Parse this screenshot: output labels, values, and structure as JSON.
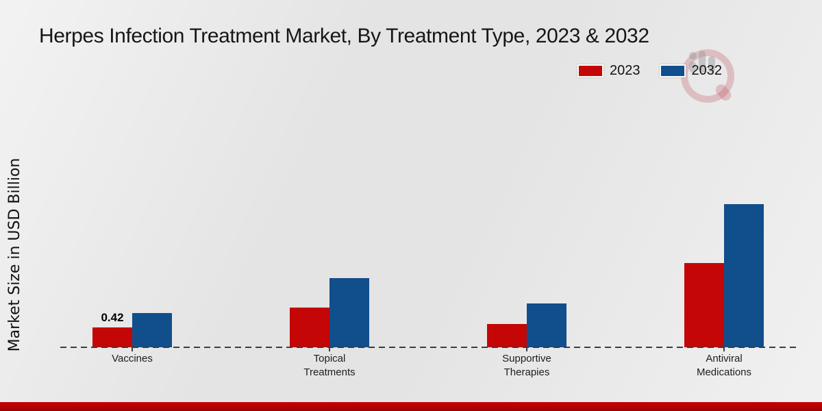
{
  "title": "Herpes Infection Treatment Market, By Treatment Type, 2023 & 2032",
  "y_axis_label": "Market Size in USD Billion",
  "legend": {
    "items": [
      {
        "label": "2023",
        "color": "#c40606"
      },
      {
        "label": "2032",
        "color": "#114e8c"
      }
    ]
  },
  "watermark_icon": "mrfr-logo-watermark",
  "footer": {
    "accent_bar_color": "#b00000"
  },
  "chart_data": {
    "type": "bar",
    "title": "Herpes Infection Treatment Market, By Treatment Type, 2023 & 2032",
    "xlabel": "",
    "ylabel": "Market Size in USD Billion",
    "categories": [
      "Vaccines",
      "Topical Treatments",
      "Supportive Therapies",
      "Antiviral Medications"
    ],
    "series": [
      {
        "name": "2023",
        "color": "#c40606",
        "values": [
          0.42,
          0.84,
          0.49,
          1.78
        ]
      },
      {
        "name": "2032",
        "color": "#114e8c",
        "values": [
          0.72,
          1.46,
          0.93,
          3.03
        ]
      }
    ],
    "annotations": [
      {
        "category": "Vaccines",
        "series": "2023",
        "text": "0.42"
      }
    ],
    "ylim": [
      0,
      3.5
    ],
    "grid": false,
    "y_axis_ticks_visible": false,
    "baseline_style": "dashed",
    "legend_position": "top-right",
    "unit": "USD Billion"
  }
}
